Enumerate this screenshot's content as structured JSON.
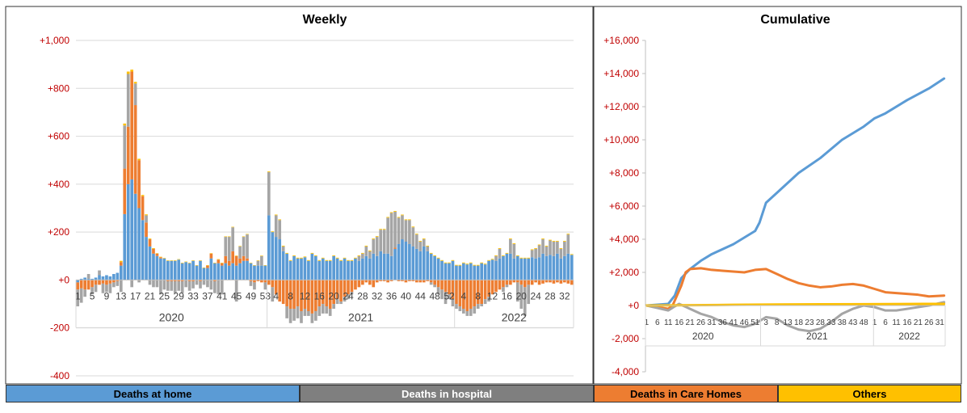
{
  "colors": {
    "home": "#5b9bd5",
    "hospital": "#a5a5a5",
    "care": "#ed7d31",
    "others": "#ffc000",
    "axis_label": "#c00000",
    "grid": "#d9d9d9"
  },
  "legend": {
    "home": "Deaths at home",
    "hospital": "Deaths in hospital",
    "care": "Deaths in Care Homes",
    "others": "Others"
  },
  "chart_data": [
    {
      "type": "bar",
      "stacked": true,
      "title": "Weekly",
      "xlabel": "",
      "ylabel": "",
      "ylim": [
        -400,
        1000
      ],
      "yticks": [
        -400,
        -200,
        0,
        200,
        400,
        600,
        800,
        1000
      ],
      "ytick_labels": [
        "-400",
        "-200",
        "+0",
        "+200",
        "+400",
        "+600",
        "+800",
        "+1,000"
      ],
      "grid": true,
      "years": [
        {
          "label": "2020",
          "start": 0,
          "end": 52
        },
        {
          "label": "2021",
          "start": 53,
          "end": 104
        },
        {
          "label": "2022",
          "start": 105,
          "end": 137
        }
      ],
      "x_ticks": [
        {
          "i": 0,
          "label": "1"
        },
        {
          "i": 4,
          "label": "5"
        },
        {
          "i": 8,
          "label": "9"
        },
        {
          "i": 12,
          "label": "13"
        },
        {
          "i": 16,
          "label": "17"
        },
        {
          "i": 20,
          "label": "21"
        },
        {
          "i": 24,
          "label": "25"
        },
        {
          "i": 28,
          "label": "29"
        },
        {
          "i": 32,
          "label": "33"
        },
        {
          "i": 36,
          "label": "37"
        },
        {
          "i": 40,
          "label": "41"
        },
        {
          "i": 44,
          "label": "45"
        },
        {
          "i": 48,
          "label": "49"
        },
        {
          "i": 52,
          "label": "53"
        },
        {
          "i": 55,
          "label": "4"
        },
        {
          "i": 59,
          "label": "8"
        },
        {
          "i": 63,
          "label": "12"
        },
        {
          "i": 67,
          "label": "16"
        },
        {
          "i": 71,
          "label": "20"
        },
        {
          "i": 75,
          "label": "24"
        },
        {
          "i": 79,
          "label": "28"
        },
        {
          "i": 83,
          "label": "32"
        },
        {
          "i": 87,
          "label": "36"
        },
        {
          "i": 91,
          "label": "40"
        },
        {
          "i": 95,
          "label": "44"
        },
        {
          "i": 99,
          "label": "48"
        },
        {
          "i": 103,
          "label": "52"
        },
        {
          "i": 107,
          "label": "4"
        },
        {
          "i": 111,
          "label": "8"
        },
        {
          "i": 115,
          "label": "12"
        },
        {
          "i": 119,
          "label": "16"
        },
        {
          "i": 123,
          "label": "20"
        },
        {
          "i": 127,
          "label": "24"
        },
        {
          "i": 131,
          "label": "28"
        },
        {
          "i": 135,
          "label": "32"
        }
      ],
      "series": [
        {
          "name": "Deaths at home",
          "key": "home",
          "values": [
            -10,
            5,
            10,
            5,
            5,
            10,
            20,
            15,
            20,
            15,
            25,
            30,
            60,
            275,
            400,
            420,
            360,
            300,
            250,
            180,
            140,
            110,
            100,
            90,
            90,
            80,
            80,
            80,
            85,
            70,
            75,
            70,
            80,
            60,
            80,
            50,
            50,
            90,
            70,
            70,
            60,
            70,
            60,
            70,
            60,
            70,
            80,
            80,
            70,
            60,
            60,
            60,
            60,
            270,
            200,
            180,
            170,
            120,
            110,
            80,
            100,
            90,
            90,
            95,
            80,
            110,
            100,
            80,
            90,
            80,
            80,
            100,
            90,
            80,
            90,
            80,
            80,
            90,
            80,
            90,
            100,
            90,
            110,
            100,
            120,
            110,
            110,
            100,
            130,
            150,
            170,
            160,
            150,
            140,
            130,
            120,
            140,
            120,
            110,
            100,
            90,
            80,
            70,
            70,
            80,
            60,
            60,
            70,
            65,
            70,
            60,
            60,
            70,
            65,
            80,
            85,
            80,
            90,
            100,
            110,
            110,
            90,
            100,
            90,
            90,
            90,
            95,
            90,
            95,
            110,
            100,
            105,
            100,
            110,
            90,
            100,
            110,
            105,
            100
          ]
        },
        {
          "name": "Deaths in Care Homes",
          "key": "care",
          "values": [
            -30,
            -35,
            -40,
            -40,
            -30,
            -20,
            -20,
            -15,
            -20,
            -15,
            -10,
            -5,
            15,
            190,
            240,
            450,
            370,
            200,
            100,
            60,
            30,
            20,
            10,
            5,
            0,
            -5,
            -5,
            -5,
            -5,
            -5,
            0,
            -5,
            -5,
            0,
            -5,
            0,
            10,
            20,
            -5,
            15,
            10,
            30,
            20,
            50,
            40,
            20,
            20,
            10,
            -5,
            -10,
            -5,
            -10,
            -10,
            -20,
            -30,
            -60,
            -90,
            -100,
            -110,
            -120,
            -120,
            -110,
            -130,
            -120,
            -130,
            -140,
            -130,
            -110,
            -100,
            -110,
            -120,
            -100,
            -80,
            -90,
            -70,
            -60,
            -50,
            -40,
            -30,
            -20,
            -10,
            -20,
            -30,
            -10,
            -5,
            -5,
            -10,
            -5,
            5,
            -5,
            -5,
            -10,
            -5,
            -5,
            -10,
            -10,
            -10,
            -5,
            -10,
            -20,
            -30,
            -40,
            -50,
            -60,
            -80,
            -100,
            -110,
            -120,
            -130,
            -120,
            -110,
            -100,
            -100,
            -80,
            -70,
            -60,
            -50,
            -40,
            -30,
            -20,
            -20,
            -10,
            -10,
            -20,
            -30,
            -20,
            -20,
            -10,
            -20,
            -15,
            -10,
            -10,
            -15,
            -10,
            -15,
            -10,
            -15,
            -20
          ]
        },
        {
          "name": "Deaths in hospital",
          "key": "hospital",
          "values": [
            -70,
            -60,
            -30,
            20,
            -30,
            -30,
            20,
            -40,
            -30,
            -40,
            -20,
            -20,
            -50,
            180,
            220,
            -30,
            90,
            -10,
            0,
            30,
            -20,
            -30,
            -30,
            -60,
            -40,
            -40,
            -40,
            -50,
            -40,
            -50,
            -30,
            -40,
            -30,
            -20,
            -30,
            -20,
            -30,
            -40,
            -50,
            -60,
            -60,
            80,
            100,
            100,
            -90,
            50,
            80,
            100,
            -20,
            -30,
            20,
            40,
            -30,
            180,
            -60,
            90,
            80,
            20,
            -50,
            -60,
            -50,
            -50,
            -50,
            -30,
            -20,
            -40,
            -40,
            -40,
            -40,
            -30,
            -30,
            -20,
            -20,
            -10,
            -20,
            -20,
            -10,
            0,
            20,
            20,
            40,
            30,
            60,
            80,
            90,
            100,
            150,
            180,
            150,
            110,
            100,
            90,
            100,
            80,
            60,
            40,
            30,
            20,
            -10,
            -10,
            -30,
            -40,
            -50,
            -20,
            -30,
            -20,
            -20,
            -20,
            -20,
            -30,
            -30,
            -20,
            -10,
            -20,
            -20,
            0,
            20,
            40,
            -20,
            -10,
            60,
            60,
            -80,
            -100,
            -120,
            -80,
            30,
            40,
            50,
            60,
            40,
            60,
            60,
            50,
            40,
            60,
            80
          ]
        },
        {
          "name": "Others",
          "key": "others",
          "values": [
            0,
            0,
            0,
            0,
            0,
            0,
            0,
            0,
            0,
            0,
            0,
            0,
            5,
            8,
            10,
            8,
            7,
            6,
            5,
            4,
            3,
            3,
            2,
            2,
            2,
            2,
            2,
            2,
            2,
            2,
            2,
            2,
            2,
            2,
            2,
            2,
            2,
            2,
            2,
            2,
            2,
            2,
            2,
            2,
            2,
            2,
            2,
            2,
            2,
            2,
            2,
            2,
            2,
            3,
            3,
            3,
            3,
            3,
            3,
            3,
            3,
            3,
            3,
            3,
            3,
            3,
            3,
            3,
            3,
            3,
            3,
            3,
            3,
            3,
            3,
            3,
            3,
            3,
            3,
            3,
            3,
            3,
            3,
            3,
            3,
            3,
            3,
            3,
            3,
            3,
            3,
            3,
            3,
            3,
            3,
            3,
            3,
            3,
            3,
            3,
            3,
            3,
            3,
            3,
            3,
            3,
            3,
            3,
            3,
            3,
            3,
            3,
            3,
            3,
            3,
            3,
            3,
            3,
            3,
            3,
            3,
            3,
            3,
            3,
            3,
            3,
            3,
            3,
            3,
            3,
            3,
            3,
            3,
            3,
            3,
            3,
            3,
            3
          ]
        }
      ]
    },
    {
      "type": "line",
      "title": "Cumulative",
      "xlabel": "",
      "ylabel": "",
      "ylim": [
        -4000,
        16000
      ],
      "yticks": [
        -4000,
        -2000,
        0,
        2000,
        4000,
        6000,
        8000,
        10000,
        12000,
        14000,
        16000
      ],
      "ytick_labels": [
        "-4,000",
        "-2,000",
        "+0",
        "+2,000",
        "+4,000",
        "+6,000",
        "+8,000",
        "+10,000",
        "+12,000",
        "+14,000",
        "+16,000"
      ],
      "grid": false,
      "years": [
        {
          "label": "2020",
          "start": 0,
          "end": 52
        },
        {
          "label": "2021",
          "start": 53,
          "end": 104
        },
        {
          "label": "2022",
          "start": 105,
          "end": 137
        }
      ],
      "x_ticks": [
        {
          "i": 0,
          "label": "1"
        },
        {
          "i": 5,
          "label": "6"
        },
        {
          "i": 10,
          "label": "11"
        },
        {
          "i": 15,
          "label": "16"
        },
        {
          "i": 20,
          "label": "21"
        },
        {
          "i": 25,
          "label": "26"
        },
        {
          "i": 30,
          "label": "31"
        },
        {
          "i": 35,
          "label": "36"
        },
        {
          "i": 40,
          "label": "41"
        },
        {
          "i": 45,
          "label": "46"
        },
        {
          "i": 50,
          "label": "51"
        },
        {
          "i": 55,
          "label": "3"
        },
        {
          "i": 60,
          "label": "8"
        },
        {
          "i": 65,
          "label": "13"
        },
        {
          "i": 70,
          "label": "18"
        },
        {
          "i": 75,
          "label": "23"
        },
        {
          "i": 80,
          "label": "28"
        },
        {
          "i": 85,
          "label": "33"
        },
        {
          "i": 90,
          "label": "38"
        },
        {
          "i": 95,
          "label": "43"
        },
        {
          "i": 100,
          "label": "48"
        },
        {
          "i": 105,
          "label": "1"
        },
        {
          "i": 110,
          "label": "6"
        },
        {
          "i": 115,
          "label": "11"
        },
        {
          "i": 120,
          "label": "16"
        },
        {
          "i": 125,
          "label": "21"
        },
        {
          "i": 130,
          "label": "26"
        },
        {
          "i": 135,
          "label": "31"
        }
      ],
      "series": [
        {
          "name": "Deaths at home",
          "key": "home",
          "x": [
            0,
            10,
            13,
            16,
            20,
            25,
            30,
            40,
            50,
            52,
            55,
            60,
            70,
            80,
            90,
            100,
            105,
            110,
            120,
            130,
            137
          ],
          "values": [
            0,
            100,
            600,
            1650,
            2200,
            2700,
            3100,
            3700,
            4500,
            5000,
            6200,
            6800,
            8000,
            8900,
            10000,
            10800,
            11300,
            11600,
            12400,
            13100,
            13700
          ]
        },
        {
          "name": "Deaths in Care Homes",
          "key": "care",
          "x": [
            0,
            5,
            10,
            12,
            14,
            16,
            18,
            20,
            25,
            30,
            35,
            40,
            45,
            50,
            55,
            60,
            65,
            70,
            75,
            80,
            85,
            90,
            95,
            100,
            105,
            110,
            115,
            120,
            125,
            130,
            137
          ],
          "values": [
            0,
            -100,
            -200,
            0,
            600,
            1200,
            2000,
            2200,
            2250,
            2150,
            2100,
            2050,
            2000,
            2150,
            2200,
            1900,
            1600,
            1350,
            1200,
            1100,
            1150,
            1250,
            1300,
            1200,
            1000,
            800,
            750,
            700,
            650,
            550,
            600
          ]
        },
        {
          "name": "Deaths in hospital",
          "key": "hospital",
          "x": [
            0,
            5,
            10,
            13,
            15,
            20,
            25,
            30,
            35,
            40,
            45,
            50,
            55,
            60,
            65,
            70,
            75,
            80,
            85,
            90,
            95,
            100,
            105,
            110,
            115,
            120,
            125,
            130,
            137
          ],
          "values": [
            0,
            -150,
            -300,
            -50,
            100,
            -200,
            -500,
            -700,
            -1000,
            -1200,
            -1300,
            -1100,
            -700,
            -800,
            -1200,
            -1450,
            -1550,
            -1400,
            -1000,
            -500,
            -200,
            0,
            -100,
            -300,
            -300,
            -200,
            -100,
            0,
            200
          ]
        },
        {
          "name": "Others",
          "key": "others",
          "x": [
            0,
            20,
            40,
            60,
            80,
            100,
            120,
            137
          ],
          "values": [
            0,
            20,
            40,
            60,
            70,
            80,
            90,
            100
          ]
        }
      ]
    }
  ]
}
